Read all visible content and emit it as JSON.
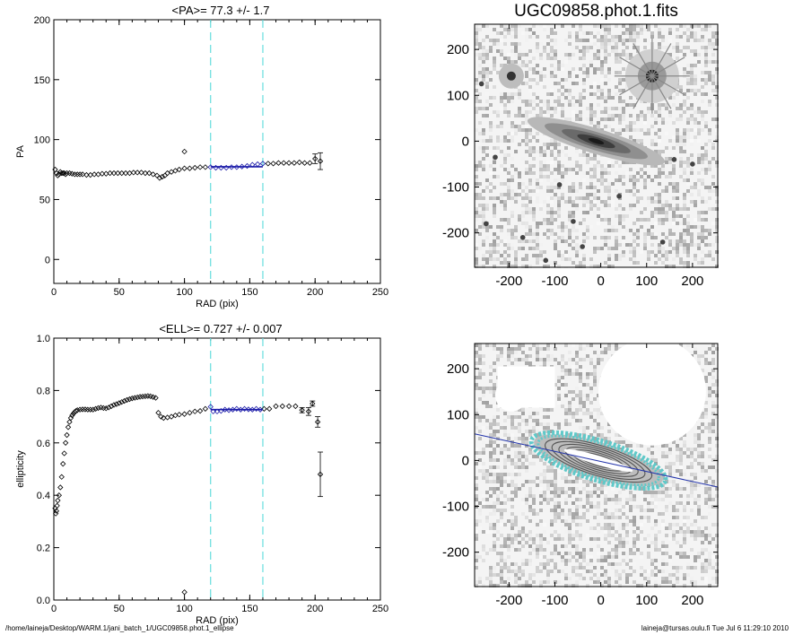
{
  "page": {
    "footer_left": "/home/laineja/Desktop/WARM.1/jani_batch_1/UGC09858.phot.1_ellipse",
    "footer_right": "laineja@tursas.oulu.fi  Tue Jul  6 11:29:10 2010"
  },
  "chart_data": [
    {
      "type": "scatter",
      "title": "<PA>=  77.3 +/-   1.7",
      "xlabel": "RAD (pix)",
      "ylabel": "PA",
      "xlim": [
        0,
        250
      ],
      "ylim": [
        -20,
        200
      ],
      "xticks": [
        0,
        50,
        100,
        150,
        200,
        250
      ],
      "yticks": [
        0,
        50,
        100,
        150,
        200
      ],
      "vlines": [
        120,
        160
      ],
      "fit": {
        "x": [
          120,
          160
        ],
        "y": [
          77.3,
          77.3
        ]
      },
      "series": [
        {
          "values": [
            [
              1,
              75
            ],
            [
              2,
              72
            ],
            [
              3,
              70
            ],
            [
              4,
              71
            ],
            [
              5,
              73
            ],
            [
              6,
              72
            ],
            [
              7,
              72
            ],
            [
              8,
              72
            ],
            [
              9,
              71
            ],
            [
              10,
              72
            ],
            [
              12,
              72
            ],
            [
              14,
              71.5
            ],
            [
              16,
              71
            ],
            [
              18,
              71
            ],
            [
              20,
              71
            ],
            [
              22,
              71
            ],
            [
              25,
              70.5
            ],
            [
              28,
              70.5
            ],
            [
              31,
              71
            ],
            [
              34,
              71
            ],
            [
              37,
              71.5
            ],
            [
              40,
              71.5
            ],
            [
              43,
              72
            ],
            [
              46,
              72
            ],
            [
              49,
              72
            ],
            [
              52,
              72
            ],
            [
              55,
              72
            ],
            [
              58,
              72
            ],
            [
              61,
              72.5
            ],
            [
              64,
              72.5
            ],
            [
              67,
              72.5
            ],
            [
              70,
              72
            ],
            [
              73,
              72
            ],
            [
              76,
              71
            ],
            [
              79,
              70
            ],
            [
              81,
              68
            ],
            [
              83,
              69
            ],
            [
              85,
              70
            ],
            [
              87,
              72
            ],
            [
              90,
              73
            ],
            [
              93,
              74
            ],
            [
              96,
              75
            ],
            [
              100,
              76
            ],
            [
              104,
              76
            ],
            [
              108,
              76.5
            ],
            [
              112,
              77
            ],
            [
              116,
              77
            ],
            [
              120,
              77
            ],
            [
              124,
              76.5
            ],
            [
              128,
              76.5
            ],
            [
              132,
              76.5
            ],
            [
              136,
              77
            ],
            [
              140,
              77
            ],
            [
              144,
              77.5
            ],
            [
              148,
              78
            ],
            [
              152,
              79
            ],
            [
              156,
              79.5
            ],
            [
              160,
              80
            ],
            [
              164,
              80
            ],
            [
              168,
              80
            ],
            [
              172,
              80.5
            ],
            [
              176,
              80.5
            ],
            [
              180,
              80.5
            ],
            [
              184,
              80.5
            ],
            [
              188,
              81
            ],
            [
              192,
              80.5
            ],
            [
              196,
              80.5
            ],
            [
              200,
              84
            ],
            [
              204,
              82
            ]
          ]
        },
        {
          "values": [
            [
              100,
              90
            ]
          ]
        }
      ],
      "errorbars": [
        {
          "x": 200,
          "y": 84,
          "err": 4
        },
        {
          "x": 204,
          "y": 82,
          "err": 7
        }
      ]
    },
    {
      "type": "scatter",
      "title": "<ELL>= 0.727 +/-  0.007",
      "xlabel": "RAD (pix)",
      "ylabel": "ellipticity",
      "xlim": [
        0,
        250
      ],
      "ylim": [
        0,
        1
      ],
      "xticks": [
        0,
        50,
        100,
        150,
        200,
        250
      ],
      "yticks": [
        "0.0",
        "0.2",
        "0.4",
        "0.6",
        "0.8",
        "1.0"
      ],
      "vlines": [
        120,
        160
      ],
      "fit": {
        "x": [
          120,
          160
        ],
        "y": [
          0.727,
          0.727
        ]
      },
      "series": [
        {
          "values": [
            [
              1,
              0.35
            ],
            [
              1.5,
              0.33
            ],
            [
              2,
              0.34
            ],
            [
              2.5,
              0.36
            ],
            [
              3,
              0.38
            ],
            [
              4,
              0.4
            ],
            [
              5,
              0.43
            ],
            [
              6,
              0.47
            ],
            [
              7,
              0.52
            ],
            [
              8,
              0.56
            ],
            [
              9,
              0.6
            ],
            [
              10,
              0.63
            ],
            [
              11,
              0.66
            ],
            [
              12,
              0.68
            ],
            [
              13,
              0.695
            ],
            [
              14,
              0.705
            ],
            [
              15,
              0.712
            ],
            [
              16,
              0.718
            ],
            [
              17,
              0.722
            ],
            [
              18,
              0.725
            ],
            [
              20,
              0.727
            ],
            [
              22,
              0.728
            ],
            [
              24,
              0.728
            ],
            [
              26,
              0.727
            ],
            [
              28,
              0.727
            ],
            [
              30,
              0.727
            ],
            [
              32,
              0.73
            ],
            [
              34,
              0.733
            ],
            [
              36,
              0.735
            ],
            [
              38,
              0.733
            ],
            [
              40,
              0.732
            ],
            [
              42,
              0.735
            ],
            [
              44,
              0.74
            ],
            [
              46,
              0.745
            ],
            [
              48,
              0.748
            ],
            [
              50,
              0.752
            ],
            [
              52,
              0.756
            ],
            [
              54,
              0.76
            ],
            [
              56,
              0.764
            ],
            [
              58,
              0.767
            ],
            [
              60,
              0.77
            ],
            [
              62,
              0.772
            ],
            [
              64,
              0.774
            ],
            [
              66,
              0.776
            ],
            [
              68,
              0.777
            ],
            [
              70,
              0.778
            ],
            [
              72,
              0.779
            ],
            [
              74,
              0.778
            ],
            [
              76,
              0.775
            ],
            [
              78,
              0.772
            ],
            [
              80,
              0.715
            ],
            [
              82,
              0.7
            ],
            [
              84,
              0.695
            ],
            [
              87,
              0.697
            ],
            [
              90,
              0.7
            ],
            [
              93,
              0.705
            ],
            [
              96,
              0.708
            ],
            [
              100,
              0.71
            ],
            [
              104,
              0.715
            ],
            [
              108,
              0.72
            ],
            [
              112,
              0.722
            ],
            [
              116,
              0.73
            ],
            [
              120,
              0.738
            ],
            [
              122,
              0.72
            ],
            [
              125,
              0.72
            ],
            [
              128,
              0.722
            ],
            [
              131,
              0.727
            ],
            [
              134,
              0.725
            ],
            [
              137,
              0.727
            ],
            [
              140,
              0.73
            ],
            [
              143,
              0.727
            ],
            [
              146,
              0.73
            ],
            [
              149,
              0.728
            ],
            [
              152,
              0.727
            ],
            [
              155,
              0.73
            ],
            [
              158,
              0.727
            ],
            [
              161,
              0.73
            ],
            [
              165,
              0.73
            ],
            [
              170,
              0.74
            ],
            [
              175,
              0.74
            ],
            [
              180,
              0.74
            ],
            [
              185,
              0.74
            ],
            [
              190,
              0.725
            ],
            [
              195,
              0.72
            ],
            [
              198,
              0.75
            ],
            [
              202,
              0.68
            ],
            [
              204,
              0.48
            ]
          ]
        },
        {
          "values": [
            [
              100,
              0.03
            ]
          ]
        }
      ],
      "errorbars": [
        {
          "x": 190,
          "y": 0.725,
          "err": 0.01
        },
        {
          "x": 195,
          "y": 0.72,
          "err": 0.015
        },
        {
          "x": 198,
          "y": 0.75,
          "err": 0.01
        },
        {
          "x": 202,
          "y": 0.68,
          "err": 0.02
        },
        {
          "x": 204,
          "y": 0.48,
          "err": 0.085
        }
      ]
    }
  ],
  "image_panels": [
    {
      "title": "UGC09858.phot.1.fits",
      "xticks": [
        "-200",
        "-100",
        "0",
        "100",
        "200"
      ],
      "yticks": [
        "200",
        "100",
        "0",
        "-100",
        "-200"
      ],
      "range": [
        -275,
        255
      ]
    },
    {
      "title": "",
      "xticks": [
        "-200",
        "-100",
        "0",
        "100",
        "200"
      ],
      "yticks": [
        "200",
        "100",
        "0",
        "-100",
        "-200"
      ],
      "range": [
        -275,
        255
      ],
      "colors": {
        "contour": "#5fc9c9",
        "ellipse": "#555555",
        "major_axis": "#2233aa"
      }
    }
  ],
  "colors": {
    "vline": "#66dddd",
    "fit": "#1a1aa8",
    "axis": "#000000"
  }
}
